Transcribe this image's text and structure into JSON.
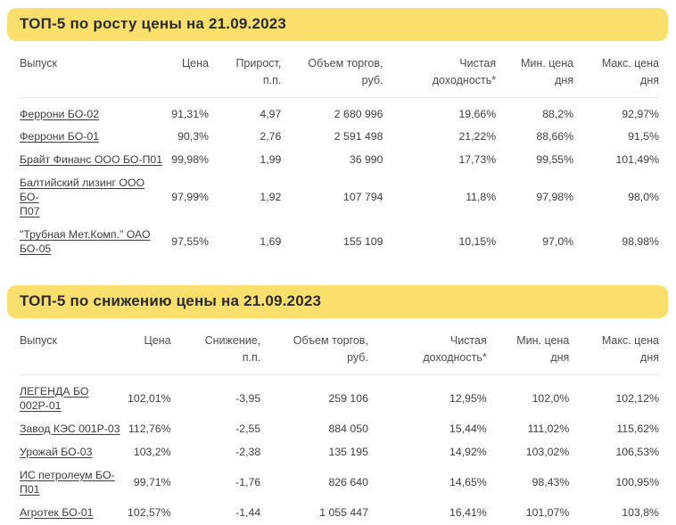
{
  "accent_color": "#FBDF6D",
  "sections": [
    {
      "title": "ТОП-5 по росту цены на 21.09.2023",
      "columns": [
        "Выпуск",
        "Цена",
        "Прирост,\nп.п.",
        "Объем торгов,\nруб.",
        "Чистая\nдоходность*",
        "Мин. цена\nдня",
        "Макс. цена\nдня"
      ],
      "rows": [
        [
          "Феррони БО-02",
          "91,31%",
          "4,97",
          "2 680 996",
          "19,66%",
          "88,2%",
          "92,97%"
        ],
        [
          "Феррони БО-01",
          "90,3%",
          "2,76",
          "2 591 498",
          "21,22%",
          "88,66%",
          "91,5%"
        ],
        [
          "Брайт Финанс ООО БО-П01",
          "99,98%",
          "1,99",
          "36 990",
          "17,73%",
          "99,55%",
          "101,49%"
        ],
        [
          "Балтийский лизинг ООО БО-\nП07",
          "97,99%",
          "1,92",
          "107 794",
          "11,8%",
          "97,98%",
          "98,0%"
        ],
        [
          "\"Трубная Мет.Комп.\" ОАО\nБО-05",
          "97,55%",
          "1,69",
          "155 109",
          "10,15%",
          "97,0%",
          "98,98%"
        ]
      ]
    },
    {
      "title": "ТОП-5 по снижению цены на 21.09.2023",
      "columns": [
        "Выпуск",
        "Цена",
        "Снижение,\nп.п.",
        "Объем торгов,\nруб.",
        "Чистая\nдоходность*",
        "Мин. цена\nдня",
        "Макс. цена\nдня"
      ],
      "rows": [
        [
          "ЛЕГЕНДА БО\n002Р-01",
          "102,01%",
          "-3,95",
          "259 106",
          "12,95%",
          "102,0%",
          "102,12%"
        ],
        [
          "Завод КЭС 001Р-03",
          "112,76%",
          "-2,55",
          "884 050",
          "15,44%",
          "111,02%",
          "115,62%"
        ],
        [
          "Урожай БО-03",
          "103,2%",
          "-2,38",
          "135 195",
          "14,92%",
          "103,02%",
          "106,53%"
        ],
        [
          "ИС петролеум БО-\nП01",
          "99,71%",
          "-1,76",
          "826 640",
          "14,65%",
          "98,43%",
          "100,95%"
        ],
        [
          "Агротек БО-01",
          "102,57%",
          "-1,44",
          "1 055 447",
          "16,41%",
          "101,07%",
          "103,8%"
        ]
      ]
    }
  ]
}
